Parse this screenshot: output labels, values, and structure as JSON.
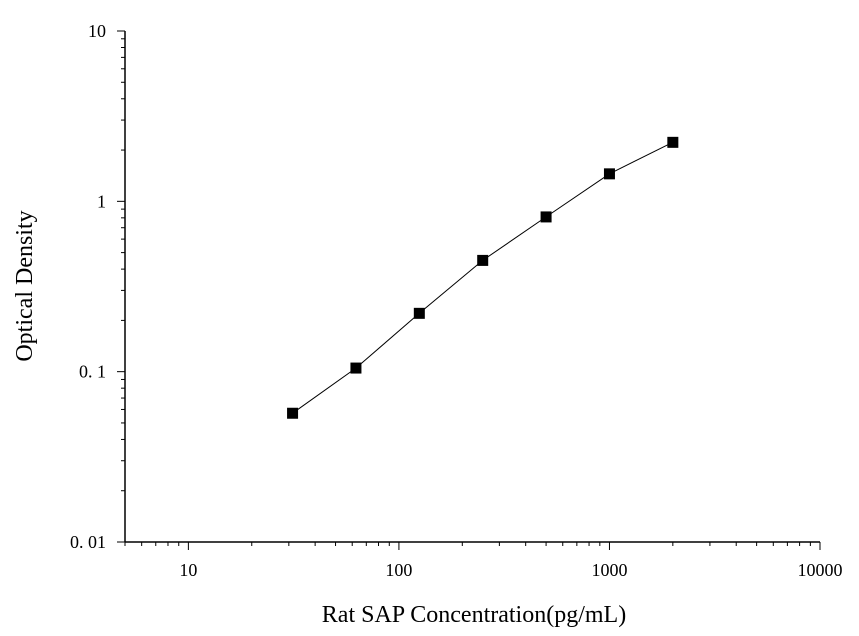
{
  "chart_data": {
    "type": "scatter",
    "title": "",
    "xlabel": "Rat SAP Concentration(pg/mL)",
    "ylabel": "Optical Density",
    "x_scale": "log",
    "y_scale": "log",
    "xlim": [
      5,
      10000
    ],
    "ylim": [
      0.01,
      10
    ],
    "x_ticks": [
      10,
      100,
      1000,
      10000
    ],
    "x_tick_labels": [
      "10",
      "100",
      "1000",
      "10000"
    ],
    "y_ticks": [
      0.01,
      0.1,
      1,
      10
    ],
    "y_tick_labels": [
      "0. 01",
      "0. 1",
      "1",
      "10"
    ],
    "grid": false,
    "legend": "none",
    "series": [
      {
        "x": [
          31.25,
          62.5,
          125,
          250,
          500,
          1000,
          2000
        ],
        "y": [
          0.057,
          0.105,
          0.22,
          0.45,
          0.81,
          1.45,
          2.22
        ],
        "marker": "square",
        "line": "connected"
      }
    ],
    "colors": {
      "line": "#000000",
      "marker": "#000000",
      "axis": "#000000"
    }
  }
}
